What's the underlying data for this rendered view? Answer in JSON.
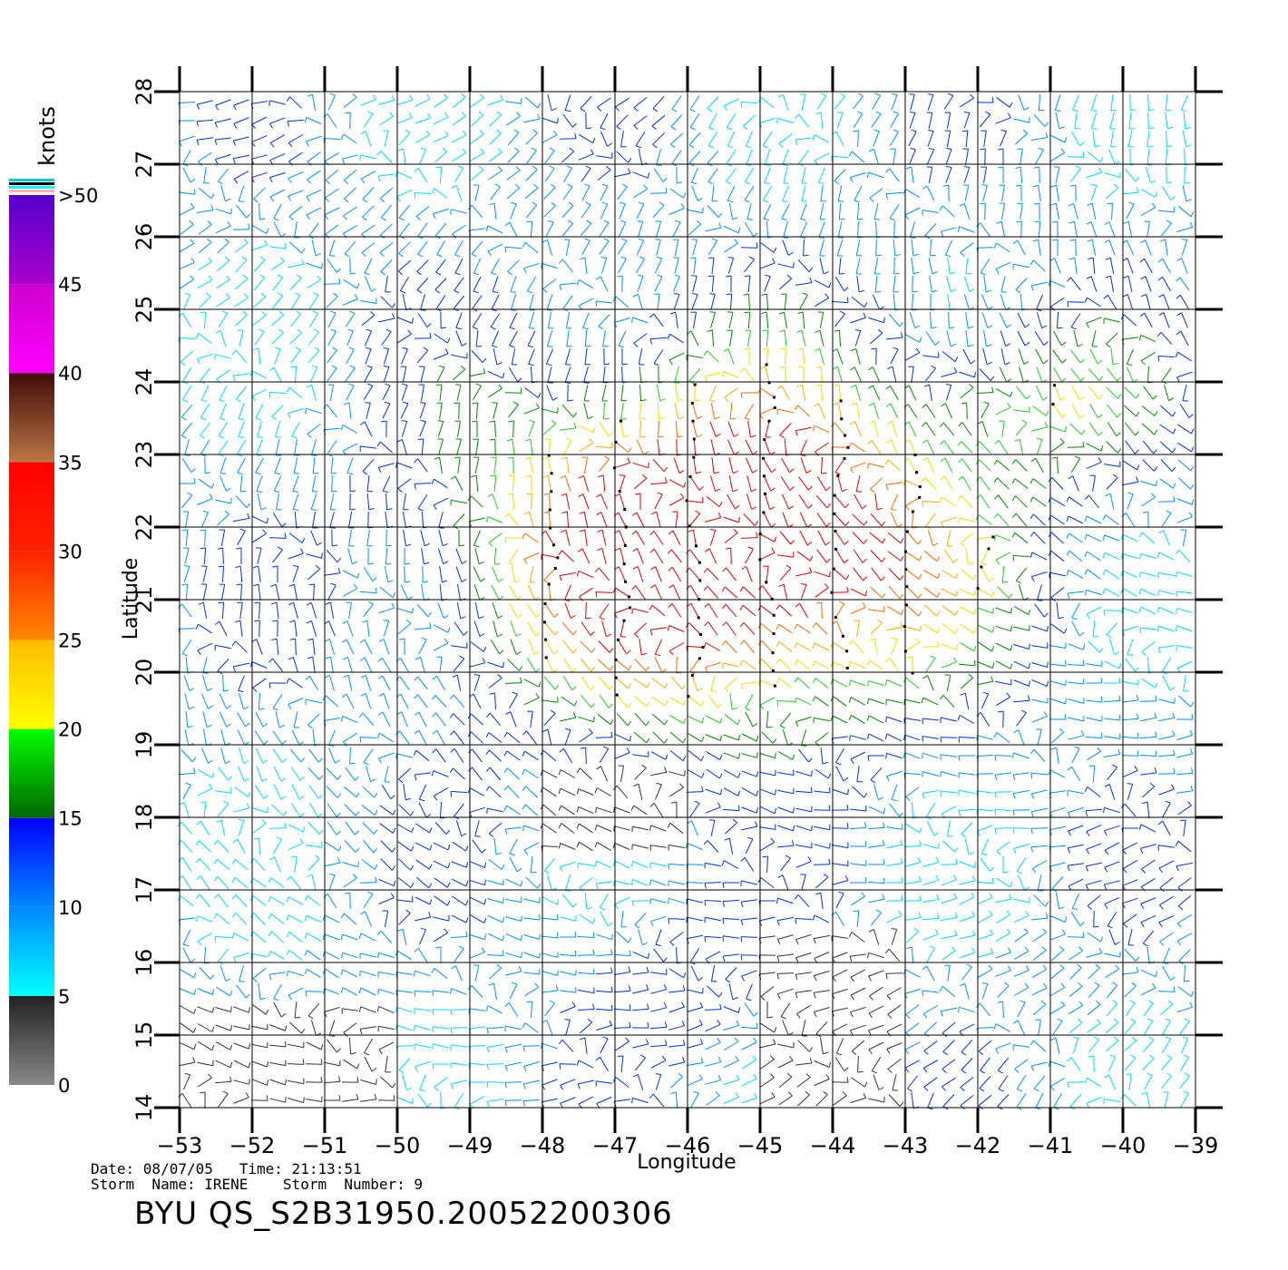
{
  "map": {
    "x_axis_label": "Longitude",
    "y_axis_label": "Latitude",
    "lon_ticks": [
      "-53",
      "-52",
      "-51",
      "-50",
      "-49",
      "-48",
      "-47",
      "-46",
      "-45",
      "-44",
      "-43",
      "-42",
      "-41",
      "-40",
      "-39"
    ],
    "lat_ticks": [
      "14",
      "15",
      "16",
      "17",
      "18",
      "19",
      "20",
      "21",
      "22",
      "23",
      "24",
      "25",
      "26",
      "27",
      "28"
    ],
    "lon_range": [
      -53,
      -39
    ],
    "lat_range": [
      14,
      28
    ],
    "grid": true
  },
  "colorbar": {
    "unit": "knots",
    "labels": [
      "0",
      "5",
      "10",
      "15",
      "20",
      "25",
      "30",
      "35",
      "40",
      "45",
      ">50"
    ],
    "bands": [
      {
        "from": 0,
        "to": 5,
        "colors": [
          "#888888",
          "#222222"
        ]
      },
      {
        "from": 5,
        "to": 10,
        "colors": [
          "#00ffff",
          "#0088ff"
        ]
      },
      {
        "from": 10,
        "to": 15,
        "colors": [
          "#0088ff",
          "#0000ff"
        ]
      },
      {
        "from": 15,
        "to": 20,
        "colors": [
          "#006600",
          "#00ff00"
        ]
      },
      {
        "from": 20,
        "to": 25,
        "colors": [
          "#ffff00",
          "#ffbb00"
        ]
      },
      {
        "from": 25,
        "to": 30,
        "colors": [
          "#ff8800",
          "#ff2200"
        ]
      },
      {
        "from": 30,
        "to": 35,
        "colors": [
          "#ff2200",
          "#ff0000"
        ]
      },
      {
        "from": 35,
        "to": 40,
        "colors": [
          "#bb7744",
          "#400a0a"
        ]
      },
      {
        "from": 40,
        "to": 45,
        "colors": [
          "#ff00ff",
          "#cc00cc"
        ]
      },
      {
        "from": 45,
        "to": 50,
        "colors": [
          "#aa00cc",
          "#5500cc"
        ]
      }
    ]
  },
  "footer": {
    "date_line": "Date: 08/07/05   Time: 21:13:51",
    "storm_line": "Storm  Name: IRENE    Storm  Number: 9",
    "title": "BYU  QS_S2B31950.20052200306"
  }
}
